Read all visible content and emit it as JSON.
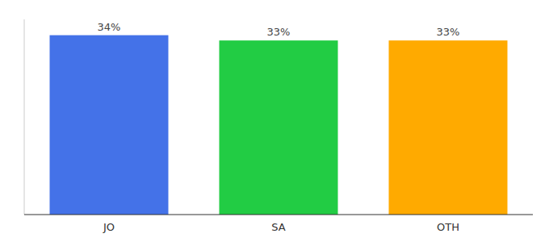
{
  "chart_data": {
    "type": "bar",
    "categories": [
      "JO",
      "SA",
      "OTH"
    ],
    "values": [
      34,
      33,
      33
    ],
    "value_labels": [
      "34%",
      "33%",
      "33%"
    ],
    "data_labels": true,
    "colors": [
      "#4472e8",
      "#22cc44",
      "#ffaa00"
    ],
    "ylim": [
      0,
      37
    ],
    "tick_labels": "x"
  }
}
